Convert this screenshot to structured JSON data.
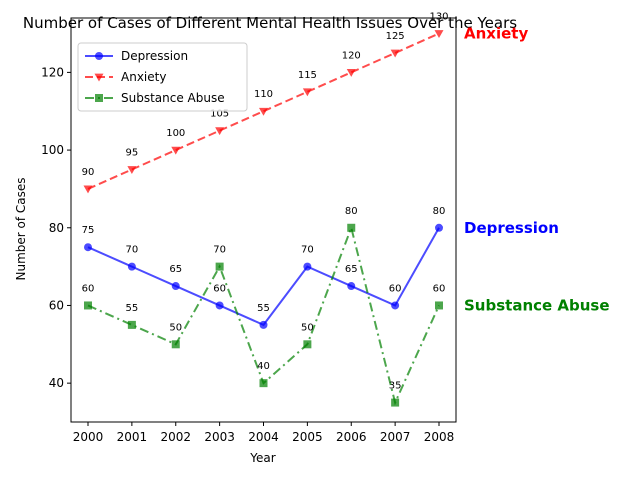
{
  "chart_data": {
    "type": "line",
    "title": "Number of Cases of Different Mental Health Issues Over the Years",
    "xlabel": "Year",
    "ylabel": "Number of Cases",
    "x": [
      "2000",
      "2001",
      "2002",
      "2003",
      "2004",
      "2005",
      "2006",
      "2007",
      "2008"
    ],
    "ylim": [
      30,
      134
    ],
    "yticks": [
      "40",
      "60",
      "80",
      "100",
      "120"
    ],
    "grid": false,
    "legend": "upper-left",
    "series": [
      {
        "name": "Depression",
        "values": [
          75,
          70,
          65,
          60,
          55,
          70,
          65,
          60,
          80
        ],
        "color": "#0000ff",
        "line_style": "solid",
        "marker": "circle",
        "end_label": "Depression"
      },
      {
        "name": "Anxiety",
        "values": [
          90,
          95,
          100,
          105,
          110,
          115,
          120,
          125,
          130
        ],
        "color": "#ff0000",
        "line_style": "dashed",
        "marker": "triangle-down",
        "end_label": "Anxiety"
      },
      {
        "name": "Substance Abuse",
        "values": [
          60,
          55,
          50,
          70,
          40,
          50,
          80,
          35,
          60
        ],
        "color": "#008000",
        "line_style": "dashdot",
        "marker": "square",
        "end_label": "Substance Abuse"
      }
    ]
  }
}
